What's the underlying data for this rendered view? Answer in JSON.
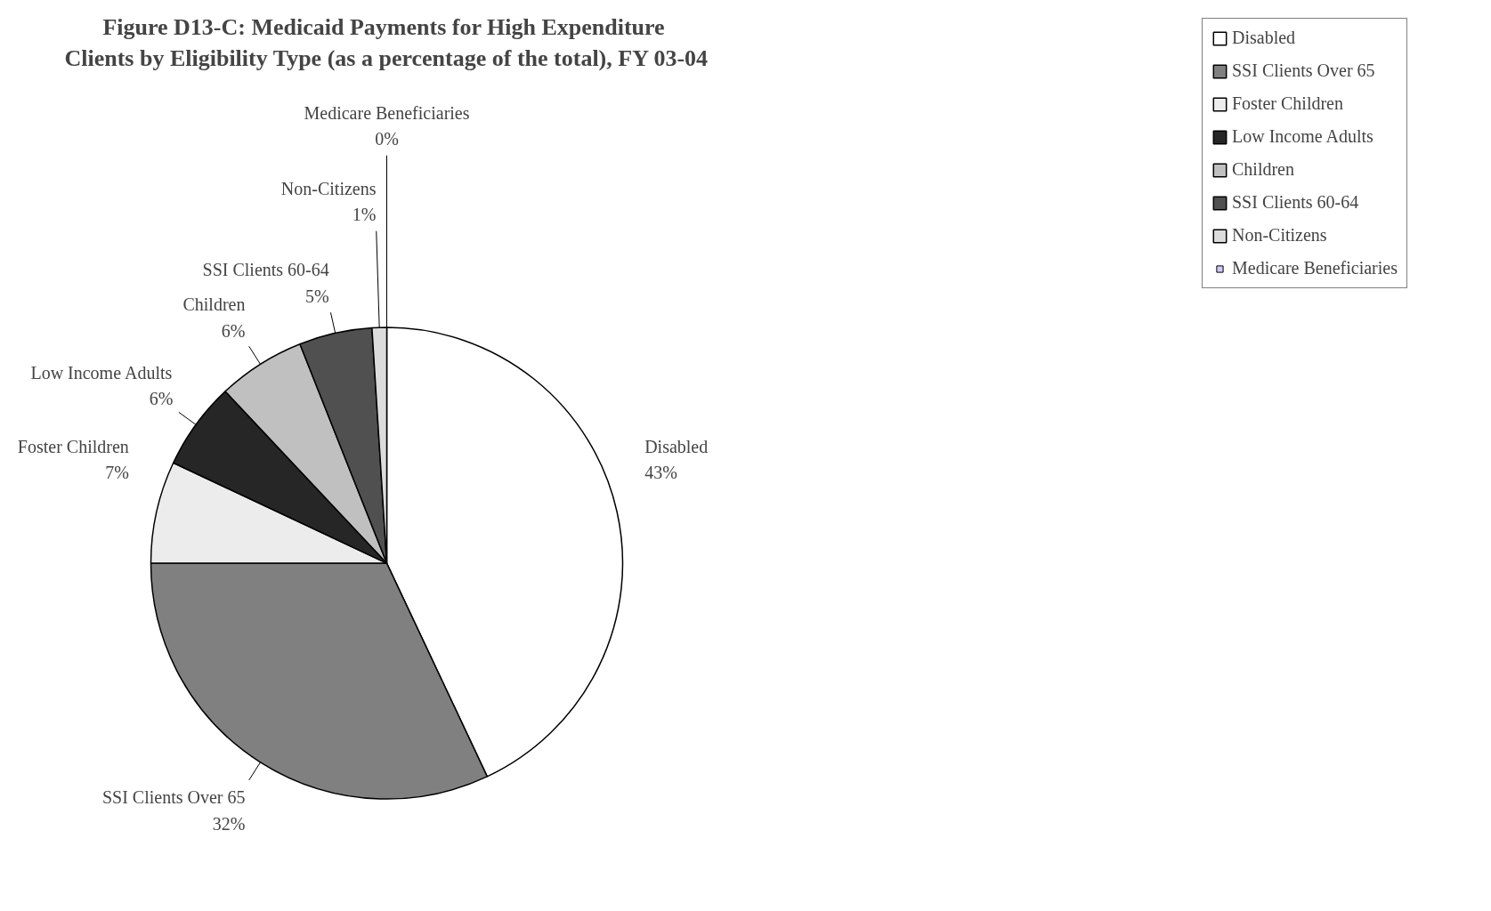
{
  "chart_data": {
    "type": "pie",
    "title": "Figure D13-C:  Medicaid Payments for High Expenditure\nClients by Eligibility Type (as a percentage of the total), FY 03-04",
    "categories": [
      "Disabled",
      "SSI Clients Over 65",
      "Foster Children",
      "Low Income Adults",
      "Children",
      "SSI Clients 60-64",
      "Non-Citizens",
      "Medicare Beneficiaries"
    ],
    "values": [
      43,
      32,
      7,
      6,
      6,
      5,
      1,
      0
    ],
    "colors": [
      "#ffffff",
      "#808080",
      "#ececec",
      "#262626",
      "#c0c0c0",
      "#505050",
      "#dcdcdc",
      "#ccccff"
    ],
    "value_labels": [
      "43%",
      "32%",
      "7%",
      "6%",
      "6%",
      "5%",
      "1%",
      "0%"
    ],
    "legend": "right"
  }
}
